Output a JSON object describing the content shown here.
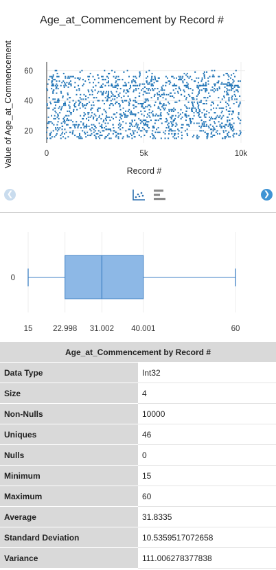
{
  "chart_data": [
    {
      "type": "scatter",
      "title": "Age_at_Commencement by Record #",
      "xlabel": "Record #",
      "ylabel": "Value of Age_at_Commencement",
      "x_range": [
        0,
        10000
      ],
      "y_range": [
        15,
        60
      ],
      "xlim": [
        0,
        10000
      ],
      "ylim": [
        12,
        64
      ],
      "x_ticks": [
        0,
        5000,
        10000
      ],
      "x_tick_labels": [
        "0",
        "5k",
        "10k"
      ],
      "y_ticks": [
        20,
        40,
        60
      ],
      "y_tick_labels": [
        "20",
        "40",
        "60"
      ],
      "point_count": 10000,
      "color": "#2074b6",
      "grid": true
    },
    {
      "type": "box",
      "category": "0",
      "min": 15,
      "q1": 22.998,
      "median": 31.002,
      "q3": 40.001,
      "max": 60,
      "tick_labels": [
        "15",
        "22.998",
        "31.002",
        "40.001",
        "60"
      ],
      "box_color": "#8db8e6",
      "line_color": "#3d7fc4"
    }
  ],
  "stats_table": {
    "title": "Age_at_Commencement by Record #",
    "rows": [
      {
        "label": "Data Type",
        "value": "Int32"
      },
      {
        "label": "Size",
        "value": "4"
      },
      {
        "label": "Non-Nulls",
        "value": "10000"
      },
      {
        "label": "Uniques",
        "value": "46"
      },
      {
        "label": "Nulls",
        "value": "0"
      },
      {
        "label": "Minimum",
        "value": "15"
      },
      {
        "label": "Maximum",
        "value": "60"
      },
      {
        "label": "Average",
        "value": "31.8335"
      },
      {
        "label": "Standard Deviation",
        "value": "10.5359517072658"
      },
      {
        "label": "Variance",
        "value": "111.006278377838"
      }
    ]
  },
  "icons": {
    "prev": "chevron-left-icon",
    "next": "chevron-right-icon",
    "scatter_view": "scatter-chart-icon",
    "bar_view": "bar-chart-icon"
  },
  "nav": {
    "prev_glyph": "❮",
    "next_glyph": "❯"
  }
}
